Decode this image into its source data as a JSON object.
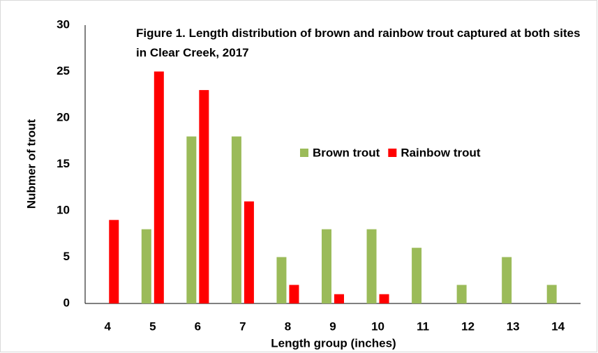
{
  "chart_data": {
    "type": "bar",
    "title": "Figure 1. Length distribution of brown and rainbow trout captured at both sites in Clear Creek, 2017",
    "x_label": "Length group (inches)",
    "y_label": "Nubmer of trout",
    "categories": [
      "4",
      "5",
      "6",
      "7",
      "8",
      "9",
      "10",
      "11",
      "12",
      "13",
      "14"
    ],
    "series": [
      {
        "name": "Brown trout",
        "color": "#9bbb59",
        "values": [
          0,
          8,
          18,
          18,
          5,
          8,
          8,
          6,
          2,
          5,
          2
        ]
      },
      {
        "name": "Rainbow trout",
        "color": "#ff0000",
        "values": [
          9,
          25,
          23,
          11,
          2,
          1,
          1,
          0,
          0,
          0,
          0
        ]
      }
    ],
    "ylim": [
      0,
      30
    ],
    "yticks": [
      0,
      5,
      10,
      15,
      20,
      25,
      30
    ],
    "grid": false
  }
}
